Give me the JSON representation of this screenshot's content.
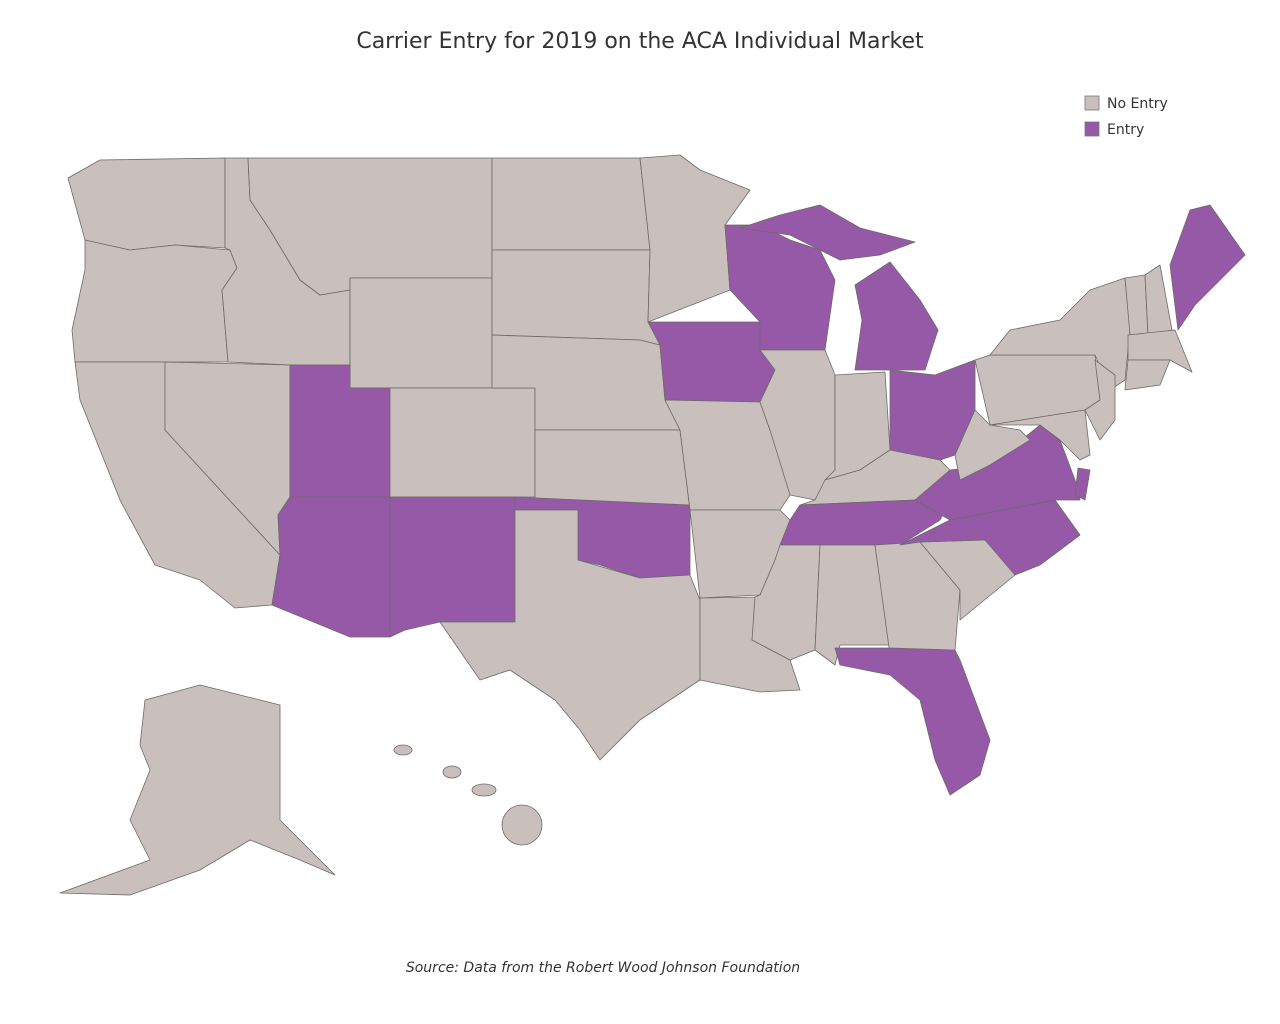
{
  "title": "Carrier Entry for 2019 on the ACA Individual Market",
  "legend": [
    {
      "label": "No Entry",
      "color": "#c9c0bd"
    },
    {
      "label": "Entry",
      "color": "#9559a8"
    }
  ],
  "source": "Source: Data from the Robert Wood Johnson Foundation"
}
